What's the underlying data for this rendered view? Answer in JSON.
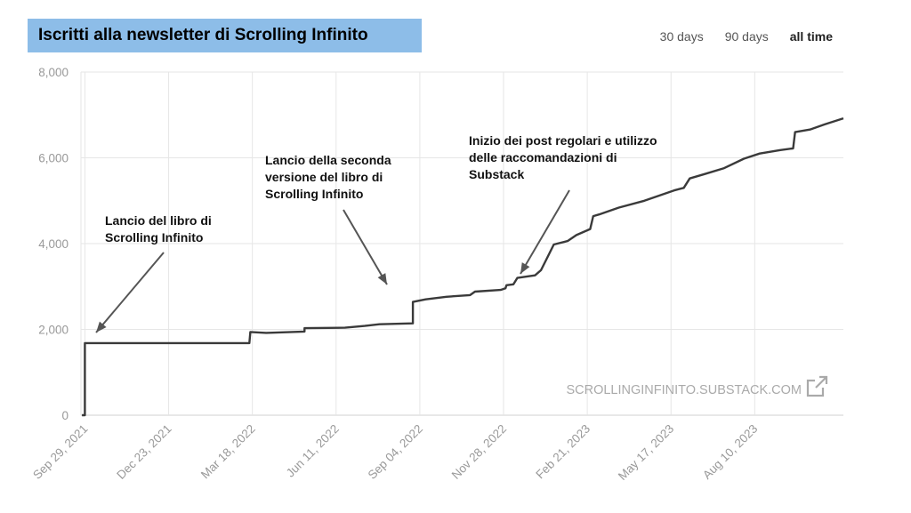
{
  "header": {
    "title": "Iscritti alla newsletter di Scrolling Infinito",
    "range_tabs": [
      {
        "label": "30 days",
        "active": false
      },
      {
        "label": "90 days",
        "active": false
      },
      {
        "label": "all time",
        "active": true
      }
    ]
  },
  "watermark": {
    "text": "SCROLLINGINFINITO.SUBSTACK.COM",
    "icon": "external-link-icon"
  },
  "annotations": [
    {
      "lines": [
        "Lancio del libro di",
        "Scrolling Infinito"
      ],
      "points_to": "2021-10-01"
    },
    {
      "lines": [
        "Lancio della seconda",
        "versione del libro di",
        "Scrolling Infinito"
      ],
      "points_to": "2022-08-28"
    },
    {
      "lines": [
        "Inizio dei post regolari e utilizzo",
        "delle raccomandazioni di",
        "Substack"
      ],
      "points_to": "2022-12-05"
    }
  ],
  "colors": {
    "line": "#3a3a3a",
    "grid": "#e6e6e6",
    "tick_text": "#999999",
    "title_bg": "#8dbde8",
    "arrow": "#555555"
  },
  "chart_data": {
    "type": "line",
    "title": "Iscritti alla newsletter di Scrolling Infinito",
    "xlabel": "",
    "ylabel": "",
    "ylim": [
      0,
      8000
    ],
    "y_ticks": [
      0,
      2000,
      4000,
      6000,
      8000
    ],
    "y_tick_labels": [
      "0",
      "2,000",
      "4,000",
      "6,000",
      "8,000"
    ],
    "x_tick_labels": [
      "Sep 29, 2021",
      "Dec 23, 2021",
      "Mar 18, 2022",
      "Jun 11, 2022",
      "Sep 04, 2022",
      "Nov 28, 2022",
      "Feb 21, 2023",
      "May 17, 2023",
      "Aug 10, 2023"
    ],
    "x_tick_dates": [
      "2021-09-29",
      "2021-12-23",
      "2022-03-18",
      "2022-06-11",
      "2022-09-04",
      "2022-11-28",
      "2023-02-21",
      "2023-05-17",
      "2023-08-10"
    ],
    "xlim": [
      "2021-09-25",
      "2023-11-08"
    ],
    "grid": true,
    "series": [
      {
        "points": [
          [
            "2021-09-26",
            0
          ],
          [
            "2021-09-29",
            0
          ],
          [
            "2021-09-29",
            1680
          ],
          [
            "2022-03-15",
            1680
          ],
          [
            "2022-03-16",
            1940
          ],
          [
            "2022-04-01",
            1920
          ],
          [
            "2022-05-10",
            1950
          ],
          [
            "2022-05-10",
            2030
          ],
          [
            "2022-06-20",
            2040
          ],
          [
            "2022-07-10",
            2080
          ],
          [
            "2022-07-25",
            2120
          ],
          [
            "2022-08-28",
            2140
          ],
          [
            "2022-08-28",
            2640
          ],
          [
            "2022-09-10",
            2700
          ],
          [
            "2022-10-01",
            2760
          ],
          [
            "2022-10-25",
            2800
          ],
          [
            "2022-10-30",
            2880
          ],
          [
            "2022-11-25",
            2920
          ],
          [
            "2022-11-30",
            2960
          ],
          [
            "2022-12-01",
            3030
          ],
          [
            "2022-12-08",
            3050
          ],
          [
            "2022-12-12",
            3200
          ],
          [
            "2022-12-30",
            3260
          ],
          [
            "2023-01-05",
            3380
          ],
          [
            "2023-01-12",
            3700
          ],
          [
            "2023-01-18",
            3980
          ],
          [
            "2023-02-01",
            4060
          ],
          [
            "2023-02-10",
            4200
          ],
          [
            "2023-02-24",
            4340
          ],
          [
            "2023-02-27",
            4640
          ],
          [
            "2023-03-05",
            4680
          ],
          [
            "2023-03-25",
            4840
          ],
          [
            "2023-04-20",
            5000
          ],
          [
            "2023-05-20",
            5240
          ],
          [
            "2023-05-30",
            5300
          ],
          [
            "2023-06-05",
            5520
          ],
          [
            "2023-06-20",
            5620
          ],
          [
            "2023-07-10",
            5760
          ],
          [
            "2023-07-30",
            5980
          ],
          [
            "2023-08-15",
            6100
          ],
          [
            "2023-09-05",
            6180
          ],
          [
            "2023-09-18",
            6220
          ],
          [
            "2023-09-20",
            6600
          ],
          [
            "2023-10-05",
            6660
          ],
          [
            "2023-10-20",
            6780
          ],
          [
            "2023-11-08",
            6920
          ]
        ]
      }
    ]
  }
}
